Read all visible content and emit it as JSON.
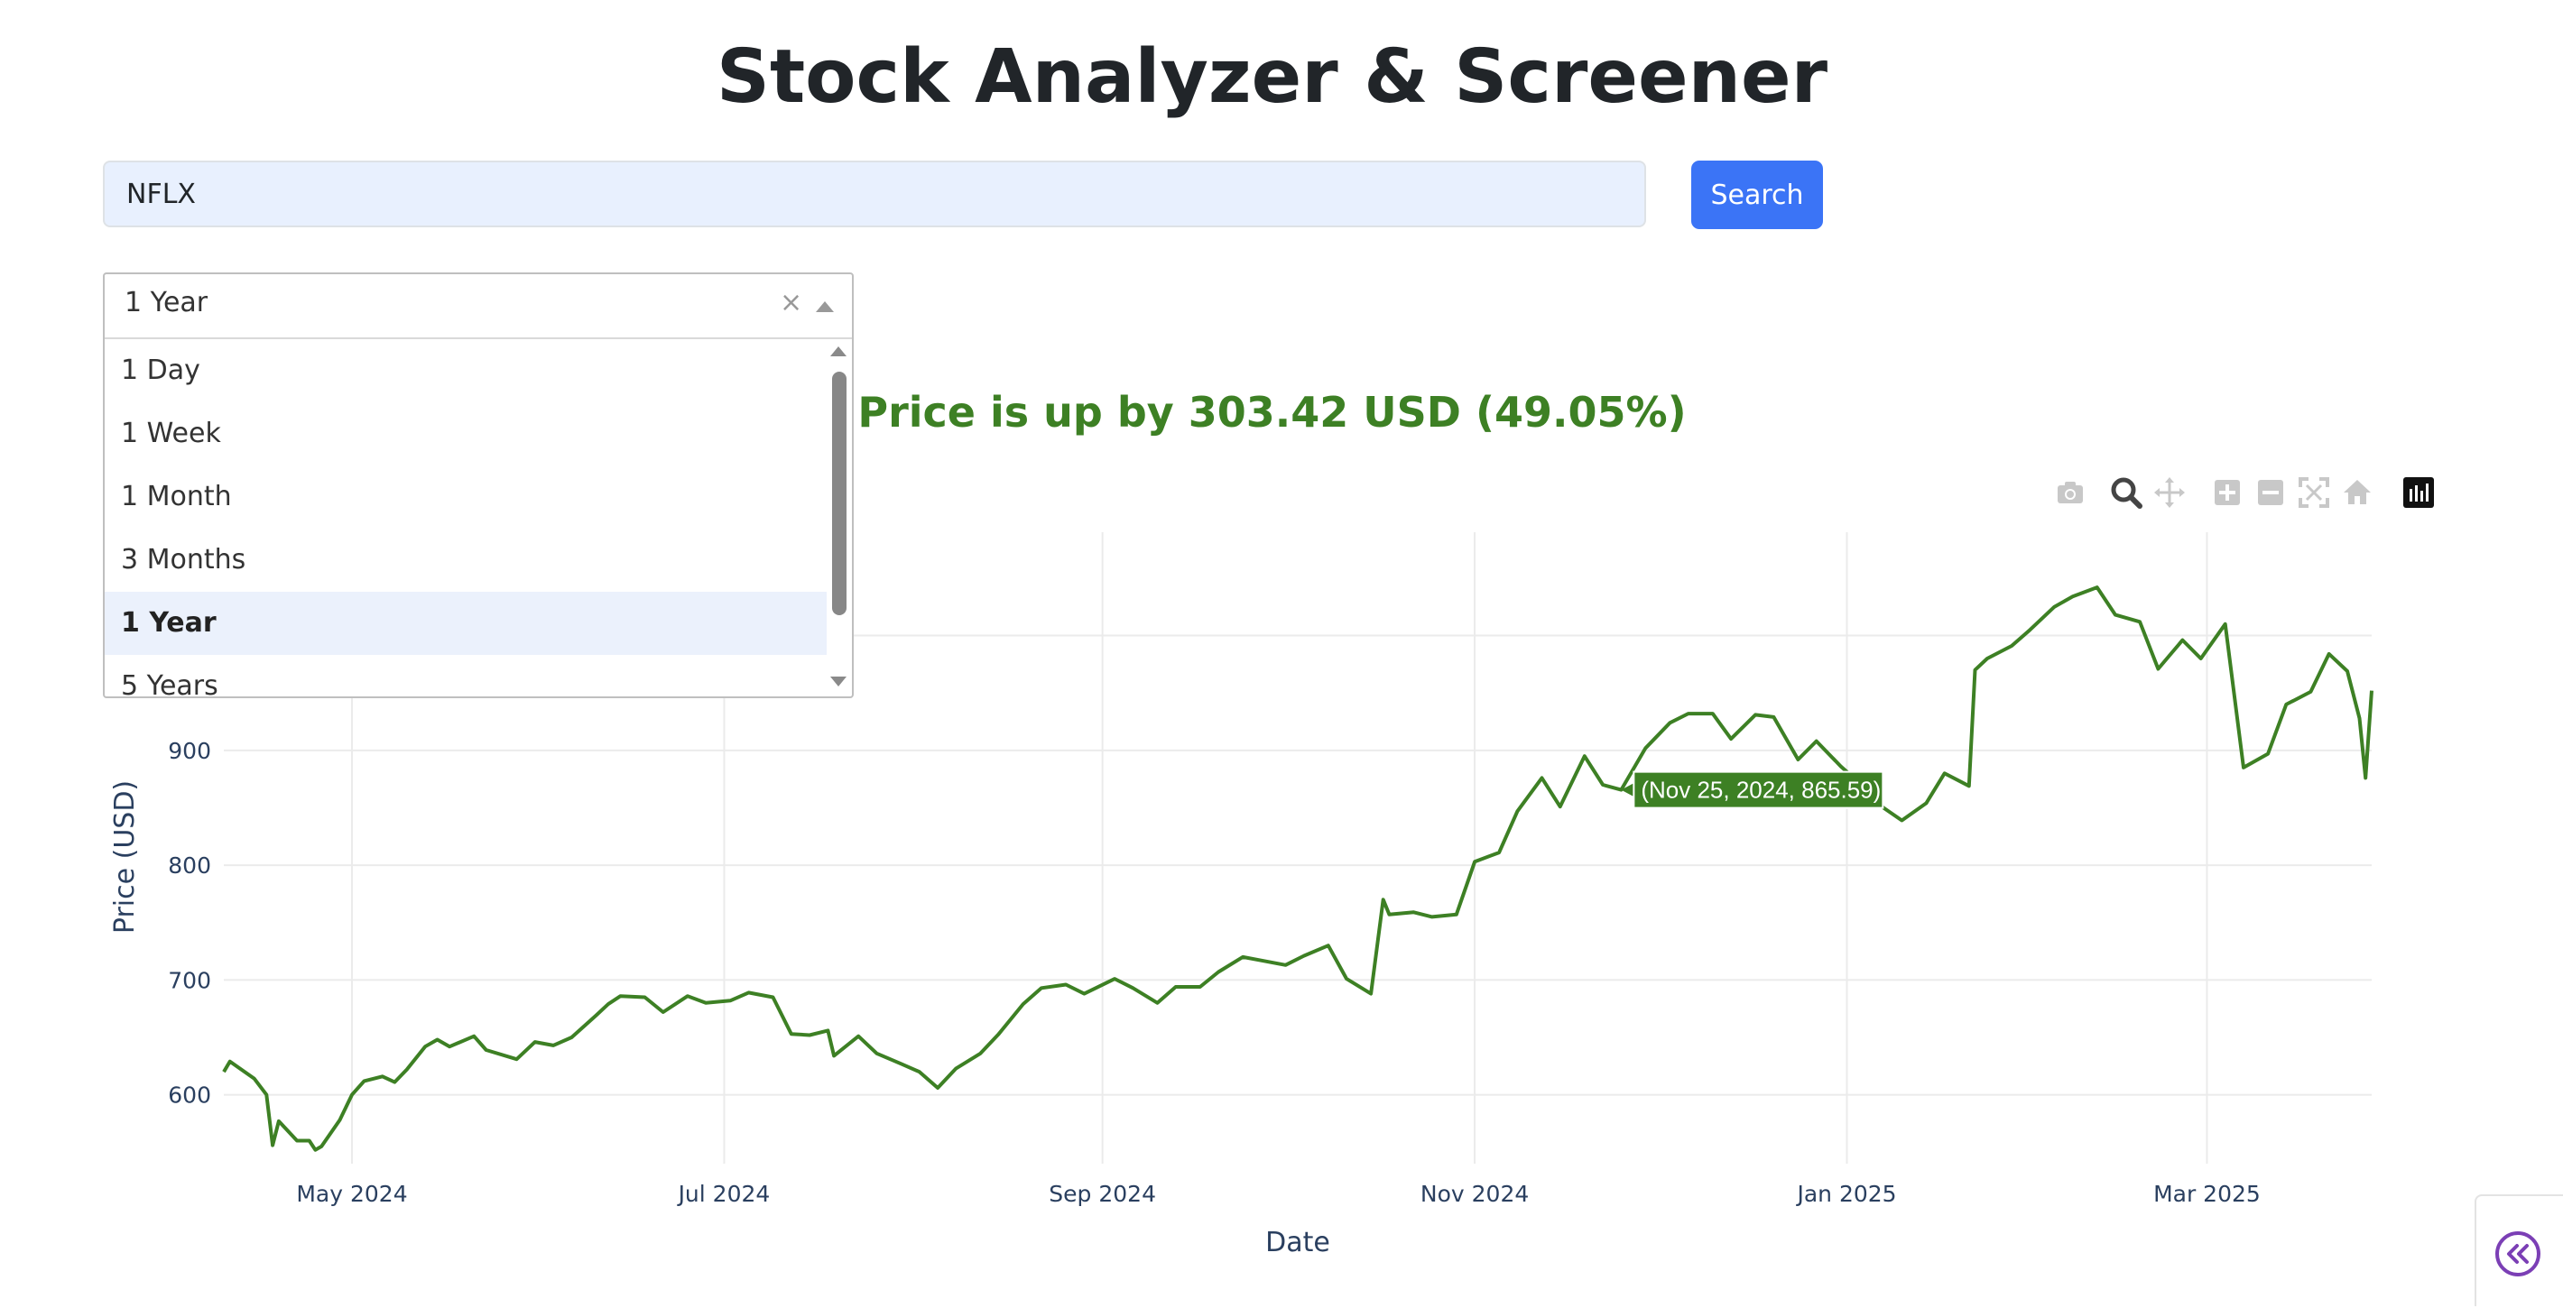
{
  "page": {
    "title": "Stock Analyzer & Screener"
  },
  "search": {
    "value": "NFLX",
    "button_label": "Search"
  },
  "period_select": {
    "selected": "1 Year",
    "clear_glyph": "×",
    "options": [
      "1 Day",
      "1 Week",
      "1 Month",
      "3 Months",
      "1 Year",
      "5 Years"
    ]
  },
  "summary": {
    "text": "Price is up by 303.42 USD (49.05%)",
    "color": "#3d8024"
  },
  "modebar": {
    "icons": [
      "camera-icon",
      "zoom-icon",
      "pan-icon",
      "zoom-in-icon",
      "zoom-out-icon",
      "autoscale-icon",
      "home-icon",
      "plotly-logo-icon"
    ]
  },
  "chart_data": {
    "type": "line",
    "xlabel": "Date",
    "ylabel": "Price (USD)",
    "x_tick_labels": [
      "May 2024",
      "Jul 2024",
      "Sep 2024",
      "Nov 2024",
      "Jan 2025",
      "Mar 2025"
    ],
    "y_tick_labels": [
      "600",
      "700",
      "800",
      "900"
    ],
    "x_range": [
      "2024-04-10",
      "2025-03-28"
    ],
    "y_range": [
      540,
      1090
    ],
    "grid": true,
    "line_color": "#3d8024",
    "hover": {
      "text": "(Nov 25, 2024, 865.59)",
      "x": "2024-11-25",
      "y": 865.59
    },
    "series": [
      {
        "x": [
          "2024-04-10",
          "2024-04-11",
          "2024-04-15",
          "2024-04-17",
          "2024-04-18",
          "2024-04-19",
          "2024-04-22",
          "2024-04-24",
          "2024-04-25",
          "2024-04-26",
          "2024-04-29",
          "2024-05-01",
          "2024-05-03",
          "2024-05-06",
          "2024-05-08",
          "2024-05-10",
          "2024-05-13",
          "2024-05-15",
          "2024-05-17",
          "2024-05-21",
          "2024-05-23",
          "2024-05-28",
          "2024-05-31",
          "2024-06-03",
          "2024-06-06",
          "2024-06-10",
          "2024-06-12",
          "2024-06-14",
          "2024-06-18",
          "2024-06-21",
          "2024-06-25",
          "2024-06-28",
          "2024-07-02",
          "2024-07-05",
          "2024-07-09",
          "2024-07-12",
          "2024-07-15",
          "2024-07-18",
          "2024-07-19",
          "2024-07-23",
          "2024-07-26",
          "2024-07-30",
          "2024-08-02",
          "2024-08-05",
          "2024-08-08",
          "2024-08-12",
          "2024-08-15",
          "2024-08-19",
          "2024-08-22",
          "2024-08-26",
          "2024-08-29",
          "2024-09-03",
          "2024-09-06",
          "2024-09-10",
          "2024-09-13",
          "2024-09-17",
          "2024-09-20",
          "2024-09-24",
          "2024-09-27",
          "2024-10-01",
          "2024-10-04",
          "2024-10-08",
          "2024-10-11",
          "2024-10-15",
          "2024-10-17",
          "2024-10-18",
          "2024-10-22",
          "2024-10-25",
          "2024-10-29",
          "2024-11-01",
          "2024-11-05",
          "2024-11-08",
          "2024-11-12",
          "2024-11-15",
          "2024-11-19",
          "2024-11-22",
          "2024-11-25",
          "2024-11-29",
          "2024-12-03",
          "2024-12-06",
          "2024-12-10",
          "2024-12-13",
          "2024-12-17",
          "2024-12-20",
          "2024-12-24",
          "2024-12-27",
          "2024-12-31",
          "2025-01-03",
          "2025-01-07",
          "2025-01-10",
          "2025-01-14",
          "2025-01-17",
          "2025-01-21",
          "2025-01-22",
          "2025-01-24",
          "2025-01-28",
          "2025-01-31",
          "2025-02-04",
          "2025-02-07",
          "2025-02-11",
          "2025-02-14",
          "2025-02-18",
          "2025-02-21",
          "2025-02-25",
          "2025-02-28",
          "2025-03-04",
          "2025-03-07",
          "2025-03-11",
          "2025-03-14",
          "2025-03-18",
          "2025-03-21",
          "2025-03-24",
          "2025-03-26",
          "2025-03-27",
          "2025-03-28"
        ],
        "y": [
          620,
          629,
          614,
          600,
          556,
          577,
          560,
          560,
          552,
          555,
          578,
          600,
          612,
          616,
          611,
          622,
          642,
          648,
          642,
          651,
          639,
          631,
          646,
          643,
          650,
          669,
          679,
          686,
          685,
          672,
          686,
          680,
          682,
          689,
          685,
          653,
          652,
          656,
          634,
          651,
          636,
          627,
          620,
          606,
          623,
          636,
          653,
          679,
          693,
          696,
          688,
          701,
          693,
          680,
          694,
          694,
          707,
          720,
          717,
          713,
          721,
          730,
          701,
          688,
          770,
          757,
          759,
          755,
          757,
          803,
          811,
          847,
          876,
          851,
          895,
          870,
          865.59,
          902,
          924,
          932,
          932,
          910,
          931,
          929,
          892,
          908,
          886,
          872,
          850,
          839,
          854,
          880,
          869,
          970,
          980,
          991,
          1005,
          1025,
          1034,
          1042,
          1018,
          1012,
          971,
          996,
          980,
          1010,
          885,
          897,
          940,
          951,
          984,
          969,
          928,
          876,
          952
        ]
      }
    ]
  }
}
